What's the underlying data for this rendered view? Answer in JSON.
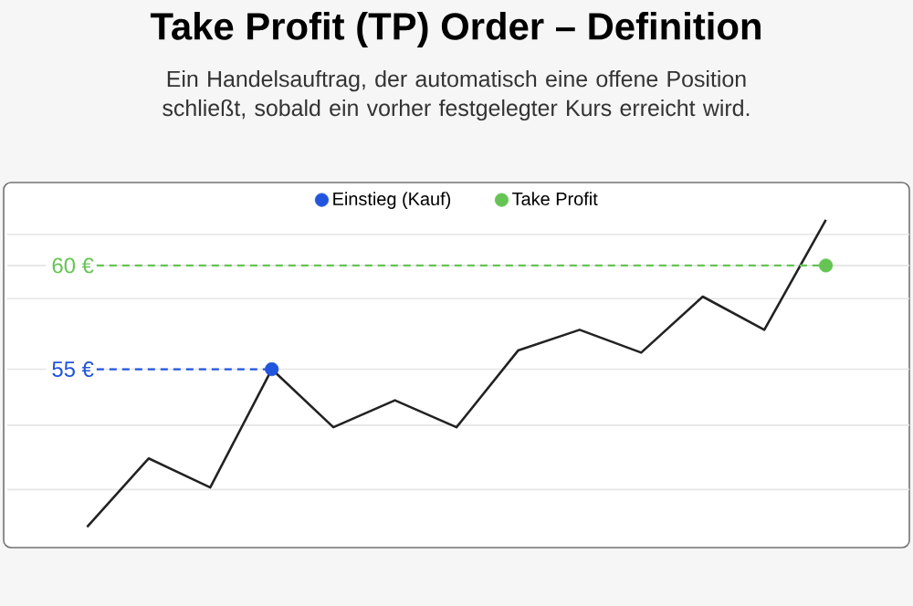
{
  "chart_data": {
    "type": "line",
    "title": "Take Profit (TP) Order – Definition",
    "subtitle": "Ein Handelsauftrag, der automatisch eine offene Position schließt, sobald ein vorher festgelegter Kurs erreicht wird.",
    "categories": [
      null,
      null,
      null,
      null,
      null,
      null,
      null,
      null,
      null,
      null,
      null,
      null,
      null
    ],
    "ylim": [
      46.4,
      64.0
    ],
    "yticks": [
      {
        "value": 49.2,
        "label": null
      },
      {
        "value": 52.3,
        "label": null
      },
      {
        "value": 55,
        "label": "55 €"
      },
      {
        "value": 58.4,
        "label": null
      },
      {
        "value": 60,
        "label": "60 €"
      },
      {
        "value": 61.5,
        "label": null
      }
    ],
    "grid": "y",
    "tick_labels": "y",
    "legend": "top",
    "series": [
      {
        "type": "line",
        "color": "#222222",
        "values": [
          47.4,
          50.7,
          49.3,
          55,
          52.2,
          53.5,
          52.2,
          55.9,
          56.9,
          55.8,
          58.5,
          56.9,
          62.2
        ]
      },
      {
        "type": "scatter",
        "name": "Einstieg (Kauf)",
        "color": "#2255dd",
        "values": [
          null,
          null,
          null,
          55,
          null,
          null,
          null,
          null,
          null,
          null,
          null,
          null,
          null
        ]
      },
      {
        "type": "scatter",
        "name": "Take Profit",
        "color": "#66c455",
        "values": [
          null,
          null,
          null,
          null,
          null,
          null,
          null,
          null,
          null,
          null,
          null,
          null,
          60
        ]
      }
    ],
    "ref_lines": [
      {
        "axis": "y",
        "value": 55,
        "color": "#2255dd",
        "line_style": "dashed"
      },
      {
        "axis": "y",
        "value": 60,
        "color": "#66c455",
        "line_style": "dashed"
      }
    ]
  }
}
